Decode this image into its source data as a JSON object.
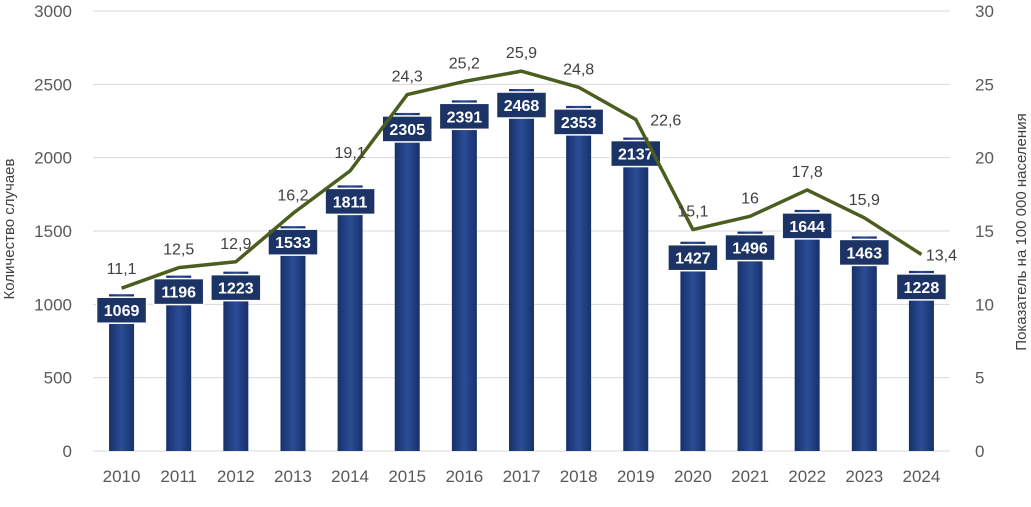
{
  "chart_data": {
    "type": "bar",
    "title": "",
    "categories": [
      "2010",
      "2011",
      "2012",
      "2013",
      "2014",
      "2015",
      "2016",
      "2017",
      "2018",
      "2019",
      "2020",
      "2021",
      "2022",
      "2023",
      "2024"
    ],
    "series": [
      {
        "name": "Количество случаев",
        "type": "bar",
        "axis": "left",
        "values": [
          1069,
          1196,
          1223,
          1533,
          1811,
          2305,
          2391,
          2468,
          2353,
          2137,
          1427,
          1496,
          1644,
          1463,
          1228
        ],
        "labels": [
          "1069",
          "1196",
          "1223",
          "1533",
          "1811",
          "2305",
          "2391",
          "2468",
          "2353",
          "2137",
          "1427",
          "1496",
          "1644",
          "1463",
          "1228"
        ]
      },
      {
        "name": "Показатель на 100 000 населения",
        "type": "line",
        "axis": "right",
        "values": [
          11.1,
          12.5,
          12.9,
          16.2,
          19.1,
          24.3,
          25.2,
          25.9,
          24.8,
          22.6,
          15.1,
          16,
          17.8,
          15.9,
          13.4
        ],
        "labels": [
          "11,1",
          "12,5",
          "12,9",
          "16,2",
          "19,1",
          "24,3",
          "25,2",
          "25,9",
          "24,8",
          "22,6",
          "15,1",
          "16",
          "17,8",
          "15,9",
          "13,4"
        ]
      }
    ],
    "ylabel": "Количество случаев",
    "y2label": "Показатель на 100 000 населения",
    "ylim": [
      0,
      3000
    ],
    "y2lim": [
      0,
      30
    ],
    "yticks": [
      "0",
      "500",
      "1000",
      "1500",
      "2000",
      "2500",
      "3000"
    ],
    "y2ticks": [
      "0",
      "5",
      "10",
      "15",
      "20",
      "25",
      "30"
    ],
    "grid": true,
    "colors": {
      "bar": "#1f3a7a",
      "bar_label_bg": "#1c3366",
      "line": "#4b5e20",
      "grid": "#d9d9d9"
    }
  }
}
